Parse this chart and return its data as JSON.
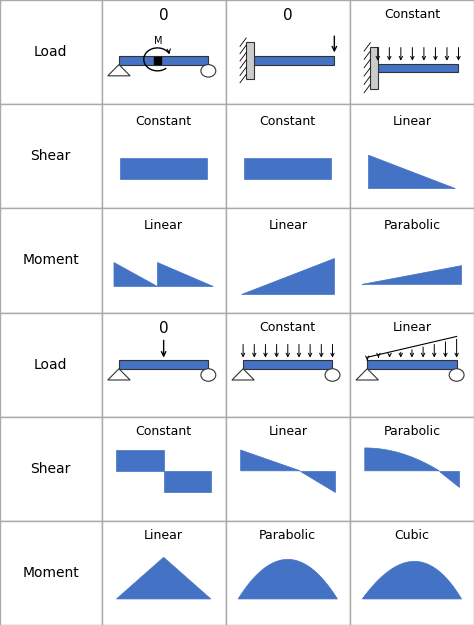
{
  "blue": "#4472C4",
  "grid_color": "#aaaaaa",
  "bg_color": "#ffffff",
  "text_color": "#000000",
  "row_labels": [
    "Load",
    "Shear",
    "Moment",
    "Load",
    "Shear",
    "Moment"
  ],
  "top_labels_row0": [
    "0",
    "0",
    "Constant"
  ],
  "top_labels_row3": [
    "0",
    "Constant",
    "Linear"
  ],
  "shear_row1_labels": [
    "Constant",
    "Constant",
    "Linear"
  ],
  "moment_row2_labels": [
    "Linear",
    "Linear",
    "Parabolic"
  ],
  "shear_row4_labels": [
    "Constant",
    "Linear",
    "Parabolic"
  ],
  "moment_row5_labels": [
    "Linear",
    "Parabolic",
    "Cubic"
  ],
  "fig_width": 4.74,
  "fig_height": 6.25,
  "dpi": 100
}
